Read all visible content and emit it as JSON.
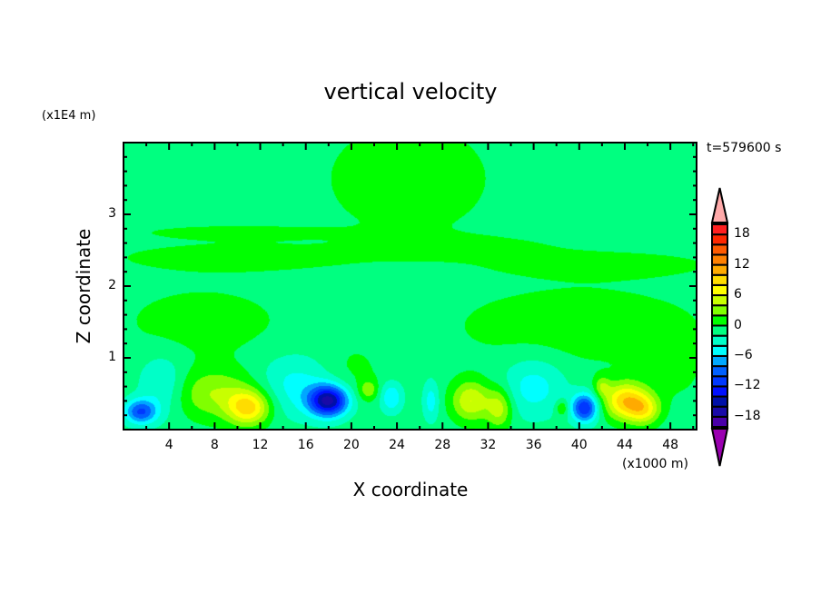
{
  "chart_data": {
    "type": "heatmap",
    "title": "vertical velocity",
    "xlabel": "X coordinate",
    "ylabel": "Z coordinate",
    "x_unit_label": "(x1000 m)",
    "y_unit_label": "(x1E4 m)",
    "time_label": "t=579600 s",
    "xlim": [
      0,
      50.3
    ],
    "ylim": [
      0,
      4
    ],
    "x_ticks": [
      4,
      8,
      12,
      16,
      20,
      24,
      28,
      32,
      36,
      40,
      44,
      48
    ],
    "x_tick_labels": [
      "4",
      "8",
      "12",
      "16",
      "20",
      "24",
      "28",
      "32",
      "36",
      "40",
      "44",
      "48"
    ],
    "y_ticks": [
      1,
      2,
      3
    ],
    "y_tick_labels": [
      "1",
      "2",
      "3"
    ],
    "colorbar": {
      "levels_min": -20,
      "levels_max": 20,
      "step": 2,
      "tick_values": [
        18,
        12,
        6,
        0,
        -6,
        -12,
        -18
      ],
      "tick_labels": [
        "18",
        "12",
        "6",
        "0",
        "−6",
        "−12",
        "−18"
      ],
      "colors": [
        "#4a00a8",
        "#1a0aa8",
        "#0010a8",
        "#0010ff",
        "#0038ff",
        "#0060ff",
        "#00a8ff",
        "#00ffff",
        "#00ffc8",
        "#00ff80",
        "#00ff00",
        "#80ff00",
        "#c8ff00",
        "#ffff00",
        "#ffdc00",
        "#ffaa00",
        "#ff8000",
        "#ff5a00",
        "#ff2800",
        "#ff2020"
      ],
      "over_color": "#ffaaaa",
      "under_color": "#9a00b0"
    },
    "base_value": -1,
    "features_note": "field approximated as base value plus gaussian anomalies [x, z, sigma_x, sigma_z, amplitude] in data units",
    "features": [
      [
        7,
        1.5,
        5,
        0.35,
        2
      ],
      [
        40,
        1.45,
        8,
        0.4,
        2.2
      ],
      [
        25,
        3.5,
        5,
        0.55,
        2.5
      ],
      [
        10,
        2.4,
        8,
        0.15,
        2
      ],
      [
        42,
        2.3,
        7,
        0.13,
        2
      ],
      [
        10,
        2.75,
        6,
        0.07,
        2
      ],
      [
        30,
        2.55,
        6,
        0.12,
        1.6
      ],
      [
        11,
        0.3,
        1.3,
        0.17,
        9
      ],
      [
        8,
        0.5,
        3,
        0.25,
        5
      ],
      [
        30.5,
        0.4,
        1.2,
        0.2,
        7
      ],
      [
        33,
        0.3,
        0.8,
        0.2,
        6
      ],
      [
        44,
        0.4,
        1.3,
        0.18,
        10
      ],
      [
        45.7,
        0.28,
        1.0,
        0.15,
        7
      ],
      [
        18,
        0.4,
        1.2,
        0.15,
        -15
      ],
      [
        1.5,
        0.25,
        1.0,
        0.12,
        -9
      ],
      [
        40.5,
        0.3,
        0.8,
        0.14,
        -11
      ],
      [
        15,
        0.6,
        2.5,
        0.3,
        -4
      ],
      [
        36,
        0.6,
        2,
        0.3,
        -4
      ],
      [
        3.5,
        0.6,
        1.5,
        0.3,
        -4
      ],
      [
        23.5,
        0.45,
        0.7,
        0.15,
        -5
      ],
      [
        27,
        0.4,
        0.5,
        0.2,
        -4
      ],
      [
        21.5,
        0.55,
        0.6,
        0.1,
        4
      ],
      [
        38.5,
        0.3,
        0.4,
        0.08,
        4
      ],
      [
        42,
        0.6,
        0.5,
        0.1,
        4
      ],
      [
        20,
        0.8,
        2,
        0.3,
        1.5
      ],
      [
        48,
        0.8,
        2,
        0.3,
        1.5
      ]
    ]
  }
}
